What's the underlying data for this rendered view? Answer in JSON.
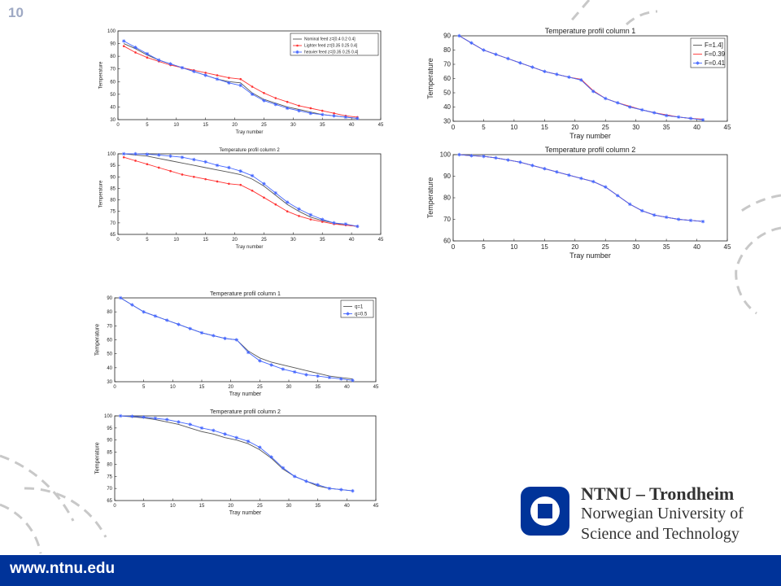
{
  "slide": {
    "number": "10",
    "footer_url": "www.ntnu.edu"
  },
  "logo": {
    "name": "NTNU – Trondheim",
    "subtitle_line1": "Norwegian University of",
    "subtitle_line2": "Science and Technology",
    "color": "#003399"
  },
  "chart_data": [
    {
      "type": "line",
      "title": "",
      "xlabel": "Tray number",
      "ylabel": "Temperature",
      "xlim": [
        0,
        45
      ],
      "ylim": [
        30,
        100
      ],
      "xticks": [
        0,
        5,
        10,
        15,
        20,
        25,
        30,
        35,
        40,
        45
      ],
      "yticks": [
        30,
        40,
        50,
        60,
        70,
        80,
        90,
        100
      ],
      "legend": "top-right",
      "x": [
        1,
        3,
        5,
        7,
        9,
        11,
        13,
        15,
        17,
        19,
        21,
        23,
        25,
        27,
        29,
        31,
        33,
        35,
        37,
        39,
        41
      ],
      "series": [
        {
          "name": "Nominal feed z=[0.4 0.2 0.4]",
          "color": "#555555",
          "marker": "none",
          "values": [
            90,
            86,
            81,
            77,
            74,
            71,
            68,
            65,
            62,
            60,
            59,
            51,
            46,
            43,
            40,
            38,
            36,
            34,
            33,
            32,
            31
          ]
        },
        {
          "name": "Lighter feed z=[0.35 0.25 0.4]",
          "color": "#ff3333",
          "marker": "dot",
          "values": [
            88,
            83,
            79,
            76,
            73,
            71,
            69,
            67,
            65,
            63,
            62,
            56,
            51,
            47,
            44,
            41,
            39,
            37,
            35,
            33,
            32
          ]
        },
        {
          "name": "heavier feed z=[0.35 0.25 0.4]",
          "color": "#4466ff",
          "marker": "star",
          "values": [
            92,
            87,
            82,
            77,
            74,
            71,
            68,
            65,
            62,
            59,
            57,
            50,
            45,
            42,
            39,
            37,
            35,
            34,
            33,
            32,
            31
          ]
        }
      ]
    },
    {
      "type": "line",
      "title": "Temperature profil column 2",
      "xlabel": "Tray number",
      "ylabel": "Temperature",
      "xlim": [
        0,
        45
      ],
      "ylim": [
        65,
        100
      ],
      "xticks": [
        0,
        5,
        10,
        15,
        20,
        25,
        30,
        35,
        40,
        45
      ],
      "yticks": [
        65,
        70,
        75,
        80,
        85,
        90,
        95,
        100
      ],
      "legend": "none",
      "x": [
        1,
        3,
        5,
        7,
        9,
        11,
        13,
        15,
        17,
        19,
        21,
        23,
        25,
        27,
        29,
        31,
        33,
        35,
        37,
        39,
        41
      ],
      "series": [
        {
          "name": "",
          "color": "#555555",
          "marker": "none",
          "values": [
            100,
            99.5,
            99,
            98,
            97,
            96,
            95,
            94,
            93,
            92,
            91,
            89,
            86,
            82,
            78,
            75,
            72.5,
            71,
            70,
            69,
            68.5
          ]
        },
        {
          "name": "",
          "color": "#ff3333",
          "marker": "dot",
          "values": [
            98.5,
            97,
            95.5,
            94,
            92.5,
            91,
            90,
            89,
            88,
            87,
            86.5,
            84,
            81,
            78,
            75,
            73,
            71.5,
            70.5,
            69.5,
            69,
            68.5
          ]
        },
        {
          "name": "",
          "color": "#4466ff",
          "marker": "star",
          "values": [
            100,
            100,
            99.8,
            99.5,
            99,
            98.5,
            97.5,
            96.5,
            95,
            94,
            92.5,
            90.5,
            87,
            83,
            79,
            76,
            73.5,
            71.5,
            70,
            69.5,
            68.5
          ]
        }
      ]
    },
    {
      "type": "line",
      "title": "Temperature profil column 1",
      "xlabel": "Tray number",
      "ylabel": "Temperature",
      "xlim": [
        0,
        45
      ],
      "ylim": [
        30,
        90
      ],
      "xticks": [
        0,
        5,
        10,
        15,
        20,
        25,
        30,
        35,
        40,
        45
      ],
      "yticks": [
        30,
        40,
        50,
        60,
        70,
        80,
        90
      ],
      "legend": "top-right",
      "x": [
        1,
        3,
        5,
        7,
        9,
        11,
        13,
        15,
        17,
        19,
        21,
        23,
        25,
        27,
        29,
        31,
        33,
        35,
        37,
        39,
        41
      ],
      "series": [
        {
          "name": "F=1.4]",
          "color": "#555555",
          "marker": "none",
          "values": [
            90,
            85,
            80,
            77,
            74,
            71,
            68,
            65,
            63,
            61,
            59,
            51,
            46,
            43,
            40,
            38,
            36,
            34,
            33,
            32,
            31
          ]
        },
        {
          "name": "F=0.39",
          "color": "#ff3333",
          "marker": "none",
          "values": [
            90,
            85,
            80,
            77,
            74,
            71,
            68,
            65,
            63,
            61,
            59.5,
            51.5,
            46,
            43,
            40.5,
            38,
            36,
            34.5,
            33,
            32,
            31.5
          ]
        },
        {
          "name": "F=0.41",
          "color": "#4466ff",
          "marker": "star",
          "values": [
            90,
            85,
            80,
            77,
            74,
            71,
            68,
            65,
            63,
            61,
            59,
            51,
            46,
            43,
            40,
            38,
            36,
            34,
            33,
            32,
            31
          ]
        }
      ]
    },
    {
      "type": "line",
      "title": "Temperature profil column 2",
      "xlabel": "Tray number",
      "ylabel": "Temperature",
      "xlim": [
        0,
        45
      ],
      "ylim": [
        60,
        100
      ],
      "xticks": [
        0,
        5,
        10,
        15,
        20,
        25,
        30,
        35,
        40,
        45
      ],
      "yticks": [
        60,
        70,
        80,
        90,
        100
      ],
      "legend": "none",
      "x": [
        1,
        3,
        5,
        7,
        9,
        11,
        13,
        15,
        17,
        19,
        21,
        23,
        25,
        27,
        29,
        31,
        33,
        35,
        37,
        39,
        41
      ],
      "series": [
        {
          "name": "",
          "color": "#555555",
          "marker": "none",
          "values": [
            100,
            99.5,
            99.2,
            98.5,
            97.5,
            96.5,
            95,
            93.5,
            92,
            90.5,
            89,
            87.5,
            85,
            81,
            77,
            74,
            72,
            71,
            70,
            69.5,
            69
          ]
        },
        {
          "name": "",
          "color": "#ff3333",
          "marker": "none",
          "values": [
            100,
            99.5,
            99.2,
            98.5,
            97.5,
            96.5,
            95,
            93.5,
            92,
            90.5,
            89,
            87.5,
            85,
            81,
            77,
            74,
            72,
            71,
            70,
            69.5,
            69
          ]
        },
        {
          "name": "",
          "color": "#4466ff",
          "marker": "star",
          "values": [
            100,
            99.5,
            99.2,
            98.5,
            97.5,
            96.5,
            95,
            93.5,
            92,
            90.5,
            89,
            87.5,
            85,
            81,
            77,
            74,
            72,
            71,
            70,
            69.5,
            69
          ]
        }
      ]
    },
    {
      "type": "line",
      "title": "Temperature profil column 1",
      "xlabel": "Tray number",
      "ylabel": "Temperature",
      "xlim": [
        0,
        45
      ],
      "ylim": [
        30,
        90
      ],
      "xticks": [
        0,
        5,
        10,
        15,
        20,
        25,
        30,
        35,
        40,
        45
      ],
      "yticks": [
        30,
        40,
        50,
        60,
        70,
        80,
        90
      ],
      "legend": "top-right",
      "x": [
        1,
        3,
        5,
        7,
        9,
        11,
        13,
        15,
        17,
        19,
        21,
        23,
        25,
        27,
        29,
        31,
        33,
        35,
        37,
        39,
        41
      ],
      "series": [
        {
          "name": "q=1",
          "color": "#555555",
          "marker": "none",
          "values": [
            90,
            85,
            80,
            77,
            74,
            71,
            68,
            65,
            63,
            61,
            60,
            52,
            47,
            44,
            42,
            40,
            38,
            36,
            34,
            33,
            32
          ]
        },
        {
          "name": "q=0.5",
          "color": "#4466ff",
          "marker": "star",
          "values": [
            90,
            85,
            80,
            77,
            74,
            71,
            68,
            65,
            63,
            61,
            60,
            51,
            45,
            42,
            39,
            37,
            35,
            34,
            33,
            32,
            31
          ]
        }
      ]
    },
    {
      "type": "line",
      "title": "Temperature profil column 2",
      "xlabel": "Tray number",
      "ylabel": "Temperature",
      "xlim": [
        0,
        45
      ],
      "ylim": [
        65,
        100
      ],
      "xticks": [
        0,
        5,
        10,
        15,
        20,
        25,
        30,
        35,
        40,
        45
      ],
      "yticks": [
        65,
        70,
        75,
        80,
        85,
        90,
        95,
        100
      ],
      "legend": "none",
      "x": [
        1,
        3,
        5,
        7,
        9,
        11,
        13,
        15,
        17,
        19,
        21,
        23,
        25,
        27,
        29,
        31,
        33,
        35,
        37,
        39,
        41
      ],
      "series": [
        {
          "name": "",
          "color": "#555555",
          "marker": "none",
          "values": [
            100,
            99.6,
            99.2,
            98.5,
            97.5,
            96.5,
            95,
            93.5,
            92.5,
            91,
            90,
            88.5,
            86,
            82.5,
            78,
            75,
            73,
            71,
            70,
            69.5,
            69
          ]
        },
        {
          "name": "",
          "color": "#4466ff",
          "marker": "star",
          "values": [
            100,
            99.8,
            99.5,
            99,
            98.5,
            97.5,
            96.5,
            95,
            94,
            92.5,
            91,
            89.5,
            87,
            83,
            78.5,
            75,
            73,
            71.5,
            70,
            69.5,
            69
          ]
        }
      ]
    }
  ]
}
